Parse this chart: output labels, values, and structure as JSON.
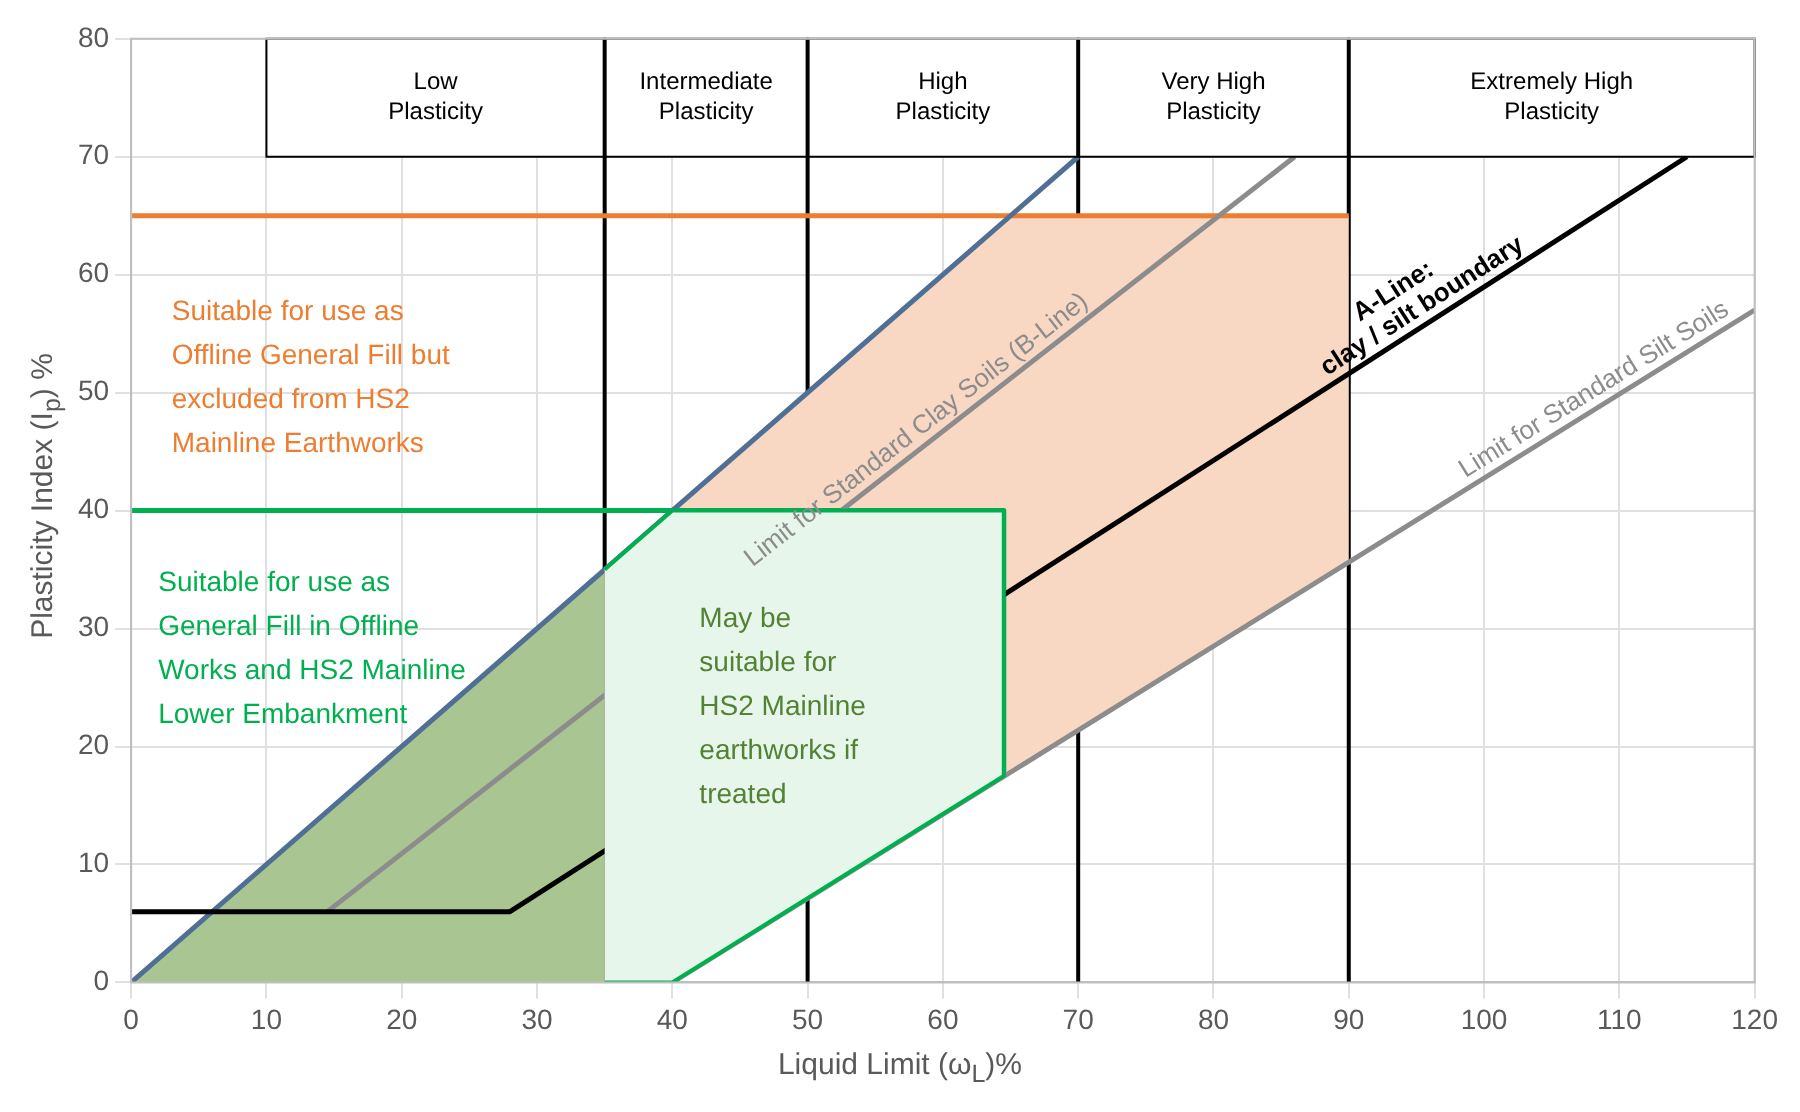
{
  "chart_data": {
    "type": "line",
    "xlabel": "Liquid Limit  (ω$_{L}$)%",
    "ylabel": "Plasticity Index (I$_{p}$) %",
    "xlim": [
      0,
      120
    ],
    "xticks": [
      0,
      10,
      20,
      30,
      40,
      50,
      60,
      70,
      80,
      90,
      100,
      110,
      120
    ],
    "ylim": [
      0,
      80
    ],
    "yticks": [
      0,
      10,
      20,
      30,
      40,
      50,
      60,
      70,
      80
    ],
    "grid": true,
    "legend": false,
    "marker": "none",
    "line_style": "solid",
    "series": [
      {
        "type": "area",
        "color": "#f8d7c3",
        "x": [
          35,
          65,
          90,
          90,
          40,
          35
        ],
        "values": [
          35,
          65,
          65,
          35.6,
          0,
          0
        ]
      },
      {
        "type": "area",
        "color": "#a9c592",
        "x": [
          0,
          35,
          35
        ],
        "values": [
          0,
          35,
          0
        ]
      },
      {
        "color": "#00b050",
        "x": [
          0,
          64.5,
          64.5
        ],
        "values": [
          40,
          40,
          17.5
        ]
      },
      {
        "color": "#ed7d31",
        "x": [
          0,
          90
        ],
        "values": [
          65,
          65
        ]
      },
      {
        "color": "#4f6f95",
        "x": [
          0,
          70
        ],
        "values": [
          0,
          70
        ]
      },
      {
        "name": "Limit for Standard Clay Soils (B-Line)",
        "color": "#8c8c8c",
        "x": [
          14.5,
          86
        ],
        "values": [
          6,
          70
        ]
      },
      {
        "name": "Limit for Standard Silt Soils",
        "color": "#8c8c8c",
        "x": [
          40,
          120
        ],
        "values": [
          0,
          57
        ]
      },
      {
        "name": "A-Line:\nclay / silt boundary",
        "color": "#000000",
        "x": [
          0,
          28,
          115
        ],
        "values": [
          6,
          6,
          70
        ]
      },
      {
        "type": "area",
        "color": "#e6f6ea",
        "x": [
          35,
          40,
          64.5,
          64.5,
          40,
          35
        ],
        "values": [
          35,
          40,
          40,
          17.5,
          0,
          0
        ]
      }
    ],
    "ref_lines": [
      {
        "axis": "x",
        "value": 35,
        "color": "#000000"
      },
      {
        "axis": "x",
        "value": 50,
        "color": "#000000"
      },
      {
        "axis": "x",
        "value": 70,
        "color": "#000000"
      },
      {
        "axis": "x",
        "value": 90,
        "color": "#000000"
      }
    ],
    "bands": [
      {
        "axis": "x",
        "from": 10,
        "to": 35,
        "label": "Low\nPlasticity",
        "color": "#ffffff"
      },
      {
        "axis": "x",
        "from": 35,
        "to": 50,
        "label": "Intermediate\nPlasticity",
        "color": "#ffffff"
      },
      {
        "axis": "x",
        "from": 50,
        "to": 70,
        "label": "High\nPlasticity",
        "color": "#ffffff"
      },
      {
        "axis": "x",
        "from": 70,
        "to": 90,
        "label": "Very High\nPlasticity",
        "color": "#ffffff"
      },
      {
        "axis": "x",
        "from": 90,
        "to": 120,
        "label": "Extremely High\nPlasticity",
        "color": "#ffffff"
      }
    ],
    "annotations": [
      "Suitable for use as\nOffline General Fill but\nexcluded from HS2\nMainline Earthworks",
      "Suitable for use as\nGeneral Fill in Offline\nWorks and HS2 Mainline\nLower Embankment",
      "May be\nsuitable for\nHS2 Mainline\nearthworks if\ntreated"
    ]
  }
}
